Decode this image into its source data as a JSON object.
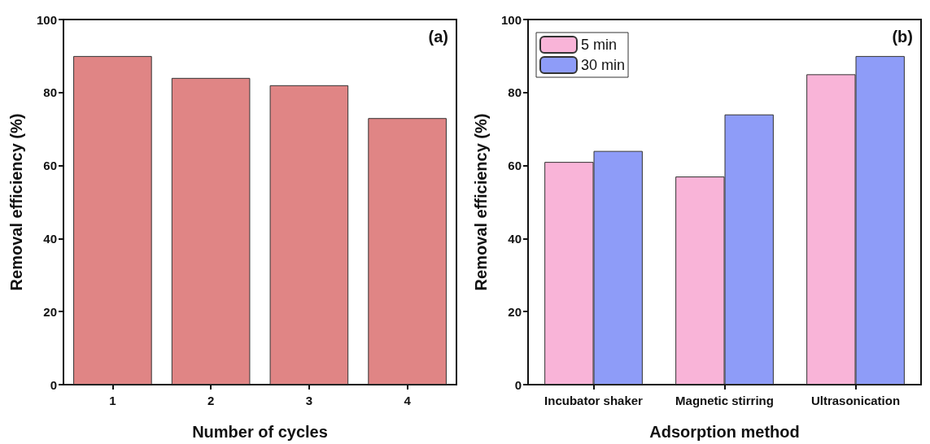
{
  "chart_data": [
    {
      "type": "bar",
      "xlabel": "Number of cycles",
      "ylabel": "Removal efficiency (%)",
      "categories": [
        "1",
        "2",
        "3",
        "4"
      ],
      "values": [
        90,
        84,
        82,
        73
      ],
      "color": "#e08585",
      "ylim": [
        0,
        100
      ],
      "yticks": [
        0,
        20,
        40,
        60,
        80,
        100
      ],
      "grid": false,
      "legend": false,
      "annotations": [
        "(a)"
      ]
    },
    {
      "type": "bar",
      "xlabel": "Adsorption method",
      "ylabel": "Removal efficiency (%)",
      "categories": [
        "Incubator shaker",
        "Magnetic stirring",
        "Ultrasonication"
      ],
      "series": [
        {
          "name": "5 min",
          "color": "#f9b4d8",
          "values": [
            61,
            57,
            85
          ]
        },
        {
          "name": "30 min",
          "color": "#8e9cf8",
          "values": [
            64,
            74,
            90
          ]
        }
      ],
      "ylim": [
        0,
        100
      ],
      "yticks": [
        0,
        20,
        40,
        60,
        80,
        100
      ],
      "grid": false,
      "legend": "top left",
      "annotations": [
        "(b)"
      ]
    }
  ]
}
